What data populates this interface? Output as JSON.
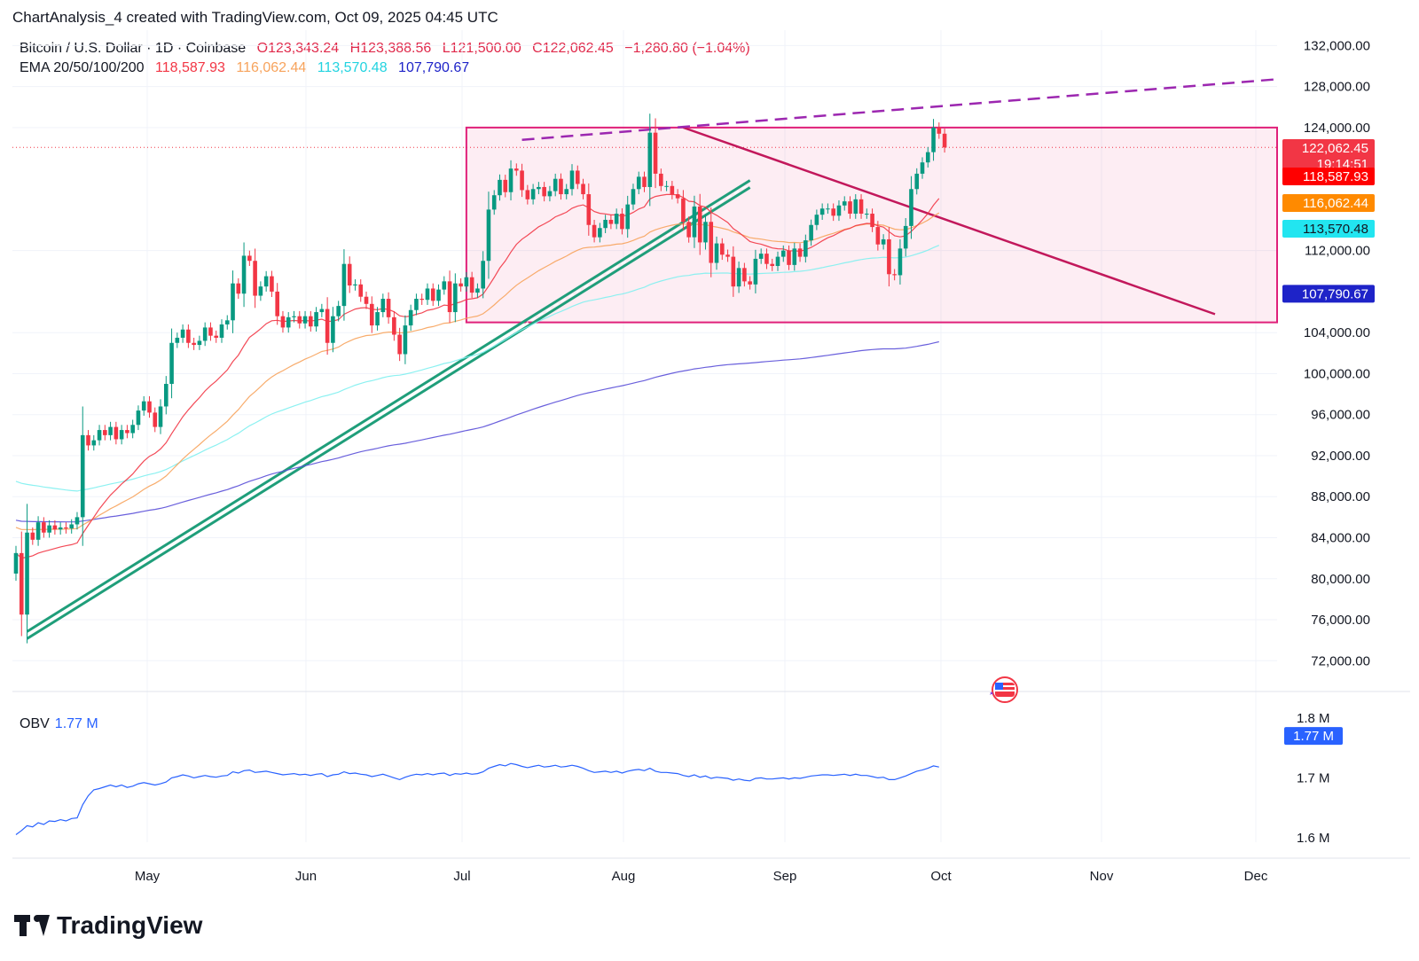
{
  "header": {
    "attribution": "ChartAnalysis_4 created with TradingView.com, Oct 09, 2025 04:45 UTC"
  },
  "legend": {
    "symbol": "Bitcoin / U.S. Dollar · 1D · Coinbase",
    "open": "O123,343.24",
    "high": "H123,388.56",
    "low": "L121,500.00",
    "close": "C122,062.45",
    "change": "−1,280.80 (−1.04%)",
    "ema_title": "EMA 20/50/100/200",
    "ema20": "118,587.93",
    "ema50": "116,062.44",
    "ema100": "113,570.48",
    "ema200": "107,790.67"
  },
  "price_axis": {
    "ticks": [
      "132,000.00",
      "128,000.00",
      "124,000.00",
      "112,000.00",
      "104,000.00",
      "100,000.00",
      "96,000.00",
      "92,000.00",
      "88,000.00",
      "84,000.00",
      "80,000.00",
      "76,000.00",
      "72,000.00"
    ],
    "tick_values": [
      132000,
      128000,
      124000,
      112000,
      104000,
      100000,
      96000,
      92000,
      88000,
      84000,
      80000,
      76000,
      72000
    ],
    "tags": [
      {
        "text": "122,062.45",
        "sub": "19:14:51",
        "color": "#f23645",
        "value": 122062.45
      },
      {
        "text": "118,587.93",
        "color": "#ff0000",
        "value": 118587.93
      },
      {
        "text": "116,062.44",
        "color": "#ff8a00",
        "value": 116062.44
      },
      {
        "text": "113,570.48",
        "color": "#22e5f0",
        "value": 113570.48
      },
      {
        "text": "107,790.67",
        "color": "#1e23c8",
        "value": 107790.67
      }
    ]
  },
  "time_axis": {
    "labels": [
      "May",
      "Jun",
      "Jul",
      "Aug",
      "Sep",
      "Oct",
      "Nov",
      "Dec"
    ]
  },
  "obv": {
    "title": "OBV",
    "value": "1.77 M",
    "axis_ticks": [
      "1.8 M",
      "1.7 M",
      "1.6 M"
    ],
    "tick_values": [
      1.8,
      1.7,
      1.6
    ]
  },
  "footer": {
    "brand": "TradingView"
  },
  "colors": {
    "up": "#089981",
    "down": "#f23645",
    "ema20": "#f23645",
    "ema50": "#f7a35c",
    "ema100": "#7ff0f0",
    "ema200": "#5a4fd8",
    "range_box": "#e0207a",
    "trend_up": "#1f9e7a",
    "obv": "#2962ff"
  },
  "chart_data": {
    "type": "candlestick",
    "title": "Bitcoin / U.S. Dollar · 1D · Coinbase",
    "xlabel": "",
    "ylabel": "",
    "ylim": [
      69000,
      133500
    ],
    "grid": true,
    "closes": [
      82500,
      76500,
      84500,
      83800,
      85500,
      84500,
      85200,
      84800,
      85000,
      84900,
      85300,
      86000,
      94000,
      93000,
      93500,
      94500,
      94000,
      94800,
      93600,
      94500,
      94200,
      95000,
      96400,
      97300,
      96200,
      94800,
      96800,
      99000,
      103000,
      103500,
      104300,
      103000,
      102800,
      103200,
      104500,
      103700,
      103500,
      104800,
      105200,
      108800,
      107800,
      111500,
      111000,
      107600,
      108500,
      109500,
      108000,
      105600,
      104500,
      105500,
      105600,
      104900,
      105600,
      104600,
      106000,
      106300,
      103000,
      105600,
      106600,
      110700,
      108600,
      108700,
      107500,
      106800,
      104700,
      106000,
      107300,
      105500,
      103800,
      101900,
      104700,
      106200,
      107300,
      107200,
      108300,
      107100,
      108200,
      109000,
      106000,
      108800,
      108500,
      109400,
      107900,
      108300,
      111000,
      116000,
      117400,
      118900,
      117700,
      120000,
      119800,
      117900,
      117000,
      118000,
      118200,
      117300,
      117800,
      119000,
      117500,
      118000,
      119800,
      118500,
      117500,
      114500,
      113300,
      114200,
      115000,
      114600,
      115600,
      114100,
      116500,
      118000,
      119200,
      118200,
      123500,
      119500,
      118300,
      118300,
      117500,
      117100,
      114800,
      113300,
      116300,
      112800,
      114800,
      110800,
      112700,
      111600,
      111400,
      108500,
      110300,
      109000,
      108700,
      111200,
      111700,
      110700,
      110500,
      111400,
      112000,
      110600,
      112200,
      111400,
      113000,
      114500,
      115500,
      116100,
      116100,
      115400,
      116400,
      116800,
      115600,
      117000,
      115600,
      115600,
      114300,
      112600,
      113100,
      109700,
      109600,
      112200,
      114400,
      118000,
      119500,
      120600,
      121600,
      124000,
      123400,
      122062
    ],
    "ema20": [
      82500,
      82000,
      82100,
      82240,
      82500,
      82650,
      82800,
      82950,
      83100,
      83210,
      83320,
      83490,
      84390,
      85210,
      86000,
      86800,
      87490,
      88160,
      88690,
      89240,
      89710,
      90220,
      90860,
      91470,
      91940,
      92220,
      92660,
      93260,
      94150,
      94960,
      95790,
      96470,
      97080,
      97660,
      98310,
      98820,
      99280,
      99820,
      100360,
      101170,
      101800,
      102720,
      103540,
      103940,
      104380,
      104860,
      105160,
      105200,
      105090,
      105130,
      105180,
      105140,
      105180,
      105120,
      105210,
      105310,
      105080,
      105130,
      105270,
      105790,
      106050,
      106300,
      106400,
      106440,
      106270,
      106240,
      106340,
      106260,
      106030,
      105640,
      105550,
      105620,
      105790,
      105930,
      106180,
      106270,
      106450,
      106690,
      106630,
      106840,
      107000,
      107230,
      107300,
      107400,
      107750,
      108530,
      109380,
      110290,
      110990,
      111850,
      112610,
      113110,
      113480,
      113910,
      114320,
      114600,
      114900,
      115290,
      115510,
      115740,
      116130,
      116350,
      116460,
      116180,
      115810,
      115640,
      115580,
      115480,
      115490,
      115360,
      115470,
      115720,
      116050,
      116260,
      117040,
      117280,
      117380,
      117470,
      117470,
      117430,
      117180,
      116810,
      116760,
      116390,
      116240,
      115730,
      115450,
      115090,
      114740,
      114140,
      113780,
      113330,
      112890,
      112730,
      112630,
      112450,
      112260,
      112180,
      112160,
      111970,
      111990,
      111930,
      112080,
      112310,
      112620,
      112950,
      113250,
      113460,
      113740,
      114020,
      114170,
      114440,
      114550,
      114650,
      114620,
      114420,
      114290,
      113850,
      113450,
      113340,
      113440,
      113870,
      114410,
      114990,
      115620,
      116420,
      117080,
      118588
    ],
    "ema50": [
      85000,
      84800,
      84800,
      84780,
      84810,
      84800,
      84820,
      84820,
      84830,
      84830,
      84850,
      84890,
      85240,
      85540,
      85850,
      86190,
      86500,
      86830,
      87100,
      87400,
      87680,
      87980,
      88330,
      88710,
      89030,
      89290,
      89620,
      90020,
      90570,
      91120,
      91670,
      92160,
      92620,
      93080,
      93570,
      94010,
      94430,
      94890,
      95350,
      95950,
      96490,
      97150,
      97770,
      98240,
      98730,
      99250,
      99680,
      100010,
      100290,
      100590,
      100890,
      101140,
      101410,
      101640,
      101900,
      102160,
      102270,
      102400,
      102590,
      102930,
      103180,
      103410,
      103570,
      103710,
      103760,
      103850,
      103980,
      104050,
      104050,
      103970,
      104000,
      104080,
      104210,
      104330,
      104490,
      104590,
      104740,
      104920,
      104960,
      105110,
      105240,
      105410,
      105510,
      105620,
      105840,
      106250,
      106700,
      107200,
      107640,
      108150,
      108620,
      109000,
      109330,
      109690,
      110040,
      110340,
      110630,
      110950,
      111200,
      111460,
      111780,
      112040,
      112250,
      112320,
      112340,
      112400,
      112480,
      112530,
      112630,
      112660,
      112800,
      112990,
      113220,
      113400,
      113800,
      114030,
      114200,
      114360,
      114480,
      114580,
      114590,
      114540,
      114610,
      114520,
      114530,
      114380,
      114300,
      114180,
      114050,
      113820,
      113660,
      113460,
      113260,
      113180,
      113120,
      113030,
      112940,
      112890,
      112870,
      112780,
      112790,
      112770,
      112850,
      112980,
      113160,
      113350,
      113530,
      113680,
      113870,
      114070,
      114200,
      114400,
      114500,
      114600,
      114590,
      114520,
      114480,
      114280,
      114090,
      114030,
      114050,
      114220,
      114440,
      114690,
      114970,
      115340,
      115670,
      116062
    ],
    "ema100": [
      89500,
      89300,
      89200,
      89110,
      89040,
      88950,
      88880,
      88800,
      88730,
      88650,
      88590,
      88550,
      88660,
      88750,
      88860,
      88990,
      89110,
      89240,
      89340,
      89460,
      89580,
      89710,
      89860,
      90030,
      90170,
      90290,
      90450,
      90650,
      90920,
      91200,
      91490,
      91760,
      92010,
      92270,
      92540,
      92790,
      93030,
      93300,
      93560,
      93890,
      94190,
      94560,
      94910,
      95190,
      95480,
      95790,
      96060,
      96270,
      96450,
      96650,
      96850,
      97030,
      97220,
      97380,
      97570,
      97760,
      97880,
      98030,
      98200,
      98450,
      98660,
      98870,
      99040,
      99200,
      99310,
      99450,
      99610,
      99730,
      99810,
      99850,
      99950,
      100070,
      100220,
      100360,
      100520,
      100660,
      100820,
      100990,
      101090,
      101260,
      101420,
      101600,
      101740,
      101880,
      102080,
      102370,
      102680,
      103010,
      103320,
      103670,
      104000,
      104290,
      104550,
      104830,
      105110,
      105350,
      105590,
      105850,
      106070,
      106290,
      106550,
      106770,
      106970,
      107100,
      107200,
      107310,
      107430,
      107540,
      107670,
      107760,
      107900,
      108070,
      108260,
      108420,
      108680,
      108870,
      109030,
      109180,
      109320,
      109450,
      109530,
      109580,
      109690,
      109730,
      109800,
      109780,
      109800,
      109810,
      109810,
      109750,
      109760,
      109730,
      109710,
      109740,
      109770,
      109790,
      109810,
      109840,
      109880,
      109900,
      109950,
      109980,
      110040,
      110130,
      110230,
      110340,
      110460,
      110560,
      110680,
      110800,
      110900,
      111030,
      111120,
      111210,
      111270,
      111300,
      111350,
      111320,
      111290,
      111310,
      111370,
      111500,
      111660,
      111840,
      112040,
      112290,
      112520,
      113570
    ],
    "ema200": [
      85700,
      85600,
      85590,
      85570,
      85570,
      85560,
      85560,
      85550,
      85550,
      85540,
      85540,
      85550,
      85630,
      85700,
      85780,
      85870,
      85950,
      86040,
      86110,
      86200,
      86280,
      86370,
      86470,
      86580,
      86680,
      86760,
      86860,
      86990,
      87150,
      87310,
      87480,
      87630,
      87780,
      87930,
      88090,
      88240,
      88380,
      88540,
      88690,
      88890,
      89070,
      89290,
      89500,
      89670,
      89850,
      90040,
      90210,
      90350,
      90480,
      90620,
      90760,
      90890,
      91020,
      91140,
      91280,
      91420,
      91520,
      91640,
      91770,
      91940,
      92090,
      92240,
      92380,
      92500,
      92600,
      92720,
      92850,
      92960,
      93050,
      93120,
      93210,
      93320,
      93430,
      93540,
      93660,
      93770,
      93880,
      94000,
      94090,
      94210,
      94330,
      94450,
      94560,
      94670,
      94800,
      94980,
      95170,
      95370,
      95560,
      95770,
      95970,
      96160,
      96340,
      96530,
      96710,
      96880,
      97050,
      97220,
      97380,
      97540,
      97710,
      97870,
      98020,
      98140,
      98250,
      98370,
      98490,
      98600,
      98720,
      98820,
      98940,
      99070,
      99200,
      99320,
      99490,
      99640,
      99780,
      99910,
      100040,
      100160,
      100260,
      100350,
      100460,
      100530,
      100620,
      100680,
      100760,
      100820,
      100880,
      100910,
      100960,
      100990,
      101030,
      101080,
      101130,
      101180,
      101220,
      101270,
      101320,
      101350,
      101400,
      101440,
      101500,
      101570,
      101640,
      101720,
      101790,
      101860,
      101940,
      102020,
      102090,
      102170,
      102240,
      102300,
      102350,
      102380,
      102420,
      102420,
      102420,
      102450,
      102490,
      102570,
      102660,
      102760,
      102860,
      102990,
      103110,
      107790
    ],
    "range_box": {
      "top": 124000,
      "bottom": 105000
    },
    "obv": [
      1.605,
      1.612,
      1.62,
      1.618,
      1.625,
      1.622,
      1.628,
      1.627,
      1.63,
      1.628,
      1.632,
      1.633,
      1.655,
      1.67,
      1.68,
      1.682,
      1.685,
      1.688,
      1.685,
      1.688,
      1.684,
      1.686,
      1.69,
      1.692,
      1.69,
      1.688,
      1.69,
      1.693,
      1.7,
      1.702,
      1.705,
      1.703,
      1.7,
      1.702,
      1.704,
      1.702,
      1.701,
      1.703,
      1.704,
      1.71,
      1.708,
      1.712,
      1.713,
      1.709,
      1.71,
      1.711,
      1.709,
      1.707,
      1.705,
      1.706,
      1.707,
      1.705,
      1.706,
      1.704,
      1.706,
      1.707,
      1.702,
      1.705,
      1.706,
      1.71,
      1.707,
      1.708,
      1.706,
      1.705,
      1.702,
      1.704,
      1.706,
      1.703,
      1.7,
      1.697,
      1.701,
      1.704,
      1.706,
      1.705,
      1.707,
      1.705,
      1.707,
      1.708,
      1.704,
      1.707,
      1.706,
      1.708,
      1.706,
      1.707,
      1.71,
      1.716,
      1.719,
      1.722,
      1.72,
      1.724,
      1.722,
      1.719,
      1.717,
      1.719,
      1.721,
      1.718,
      1.719,
      1.721,
      1.718,
      1.719,
      1.721,
      1.719,
      1.716,
      1.712,
      1.709,
      1.71,
      1.711,
      1.709,
      1.711,
      1.708,
      1.711,
      1.713,
      1.714,
      1.712,
      1.716,
      1.711,
      1.709,
      1.709,
      1.708,
      1.707,
      1.704,
      1.702,
      1.705,
      1.701,
      1.703,
      1.699,
      1.701,
      1.7,
      1.699,
      1.696,
      1.698,
      1.696,
      1.695,
      1.699,
      1.7,
      1.698,
      1.698,
      1.699,
      1.7,
      1.698,
      1.7,
      1.699,
      1.701,
      1.703,
      1.704,
      1.705,
      1.705,
      1.704,
      1.705,
      1.706,
      1.704,
      1.706,
      1.704,
      1.704,
      1.702,
      1.7,
      1.701,
      1.697,
      1.697,
      1.7,
      1.703,
      1.707,
      1.711,
      1.713,
      1.716,
      1.72,
      1.718,
      1.77
    ]
  }
}
